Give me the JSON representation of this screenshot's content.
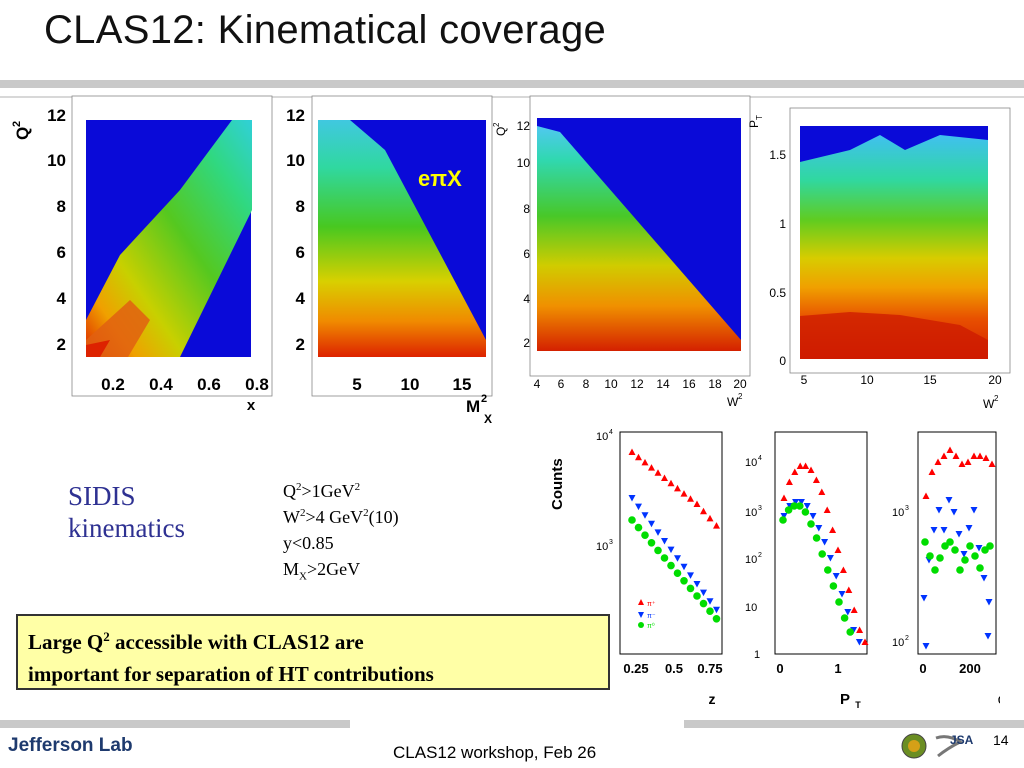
{
  "slide": {
    "title": "CLAS12: Kinematical coverage",
    "footer": "CLAS12 workshop,  Feb 26",
    "page_number": "14",
    "logo_text": "Jefferson Lab",
    "jsa_text": "JSA"
  },
  "panels": {
    "p1": {
      "y_label": "Q",
      "y_sup": "2",
      "x_label": "x",
      "yticks": [
        "12",
        "10",
        "8",
        "6",
        "4",
        "2"
      ],
      "xticks": [
        "0.2",
        "0.4",
        "0.6",
        "0.8"
      ]
    },
    "p2": {
      "x_label": "M",
      "x_sup": "2",
      "x_sub": "X",
      "yticks": [
        "12",
        "10",
        "8",
        "6",
        "4",
        "2"
      ],
      "xticks": [
        "5",
        "10",
        "15"
      ],
      "annotation": "eπX"
    },
    "p3": {
      "y_label": "Q",
      "y_sup": "2",
      "x_label": "W",
      "x_sup": "2",
      "yticks": [
        "12",
        "10",
        "8",
        "6",
        "4",
        "2"
      ],
      "xticks": [
        "4",
        "6",
        "8",
        "10",
        "12",
        "14",
        "16",
        "18",
        "20"
      ]
    },
    "p4": {
      "y_label": "P",
      "y_sub": "T",
      "x_label": "W",
      "x_sup": "2",
      "yticks": [
        "1.5",
        "1",
        "0.5",
        "0"
      ],
      "xticks": [
        "5",
        "10",
        "15",
        "20"
      ]
    }
  },
  "counts_plots": {
    "y_label": "Counts",
    "legend": [
      "π⁺",
      "π⁻",
      "π⁰"
    ],
    "colors": {
      "pi_plus": "#ff0000",
      "pi_minus": "#0033ff",
      "pi_zero": "#00dd00"
    },
    "z_plot": {
      "x_label": "z",
      "xticks": [
        "0.25",
        "0.5",
        "0.75"
      ],
      "yticks": [
        "10",
        "10"
      ],
      "ysups": [
        "4",
        "3"
      ]
    },
    "pt_plot": {
      "x_label": "P",
      "x_sub": "T",
      "xticks": [
        "0",
        "1"
      ],
      "yticks": [
        "10",
        "10",
        "10",
        "10",
        "1"
      ],
      "ysups": [
        "4",
        "3",
        "2",
        "",
        ""
      ]
    },
    "phi_plot": {
      "x_label": "ϕ",
      "xticks": [
        "0",
        "200"
      ],
      "yticks": [
        "10",
        "10"
      ],
      "ysups": [
        "3",
        "2"
      ]
    }
  },
  "sidis": {
    "line1": "SIDIS",
    "line2": "kinematics"
  },
  "cuts": {
    "c1_a": "Q",
    "c1_sup": "2",
    "c1_b": ">1GeV",
    "c1_sup2": "2",
    "c2_a": "W",
    "c2_sup": "2",
    "c2_b": ">4 GeV",
    "c2_sup2": "2",
    "c2_c": "(10)",
    "c3": "y<0.85",
    "c4_a": "M",
    "c4_sub": "X",
    "c4_b": ">2GeV"
  },
  "note": {
    "l1_a": "Large Q",
    "l1_sup": "2",
    "l1_b": " accessible with CLAS12 are",
    "l2": "important for separation of HT contributions"
  }
}
